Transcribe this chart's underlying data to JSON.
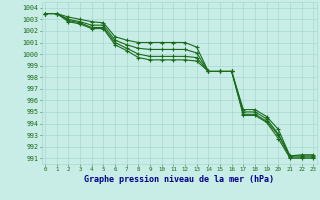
{
  "title": "Graphe pression niveau de la mer (hPa)",
  "x": [
    0,
    1,
    2,
    3,
    4,
    5,
    6,
    7,
    8,
    9,
    10,
    11,
    12,
    13,
    14,
    15,
    16,
    17,
    18,
    19,
    20,
    21,
    22,
    23
  ],
  "series": [
    [
      1003.5,
      1003.5,
      1003.2,
      1003.0,
      1002.8,
      1002.7,
      1001.5,
      1001.2,
      1001.0,
      1001.0,
      1001.0,
      1001.0,
      1001.0,
      1000.6,
      998.5,
      998.5,
      998.5,
      995.2,
      995.2,
      994.6,
      993.5,
      991.2,
      991.3,
      991.3
    ],
    [
      1003.5,
      1003.5,
      1003.0,
      1002.8,
      1002.5,
      1002.5,
      1001.2,
      1000.8,
      1000.5,
      1000.4,
      1000.4,
      1000.4,
      1000.4,
      1000.1,
      998.5,
      998.5,
      998.5,
      995.0,
      995.0,
      994.4,
      993.1,
      991.2,
      991.2,
      991.2
    ],
    [
      1003.5,
      1003.5,
      1002.9,
      1002.7,
      1002.3,
      1002.3,
      1001.0,
      1000.5,
      1000.0,
      999.8,
      999.8,
      999.8,
      999.8,
      999.7,
      998.5,
      998.5,
      998.5,
      994.8,
      994.8,
      994.2,
      993.0,
      991.1,
      991.1,
      991.1
    ],
    [
      1003.5,
      1003.5,
      1002.8,
      1002.6,
      1002.2,
      1002.2,
      1000.8,
      1000.3,
      999.7,
      999.5,
      999.5,
      999.5,
      999.5,
      999.4,
      998.5,
      998.5,
      998.5,
      994.7,
      994.7,
      994.1,
      992.7,
      991.0,
      991.0,
      991.0
    ]
  ],
  "line_color": "#1a6b1a",
  "bg_color": "#c8ece6",
  "grid_color": "#a8d8d0",
  "tick_color": "#1a6b1a",
  "label_color": "#00008b",
  "ylim": [
    990.5,
    1004.5
  ],
  "yticks": [
    991,
    992,
    993,
    994,
    995,
    996,
    997,
    998,
    999,
    1000,
    1001,
    1002,
    1003,
    1004
  ],
  "xlim": [
    -0.3,
    23.3
  ],
  "xticks": [
    0,
    1,
    2,
    3,
    4,
    5,
    6,
    7,
    8,
    9,
    10,
    11,
    12,
    13,
    14,
    15,
    16,
    17,
    18,
    19,
    20,
    21,
    22,
    23
  ]
}
